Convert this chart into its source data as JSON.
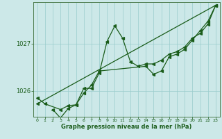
{
  "xlabel": "Graphe pression niveau de la mer (hPa)",
  "hours": [
    0,
    1,
    2,
    3,
    4,
    5,
    6,
    7,
    8,
    9,
    10,
    11,
    12,
    13,
    14,
    15,
    16,
    17,
    18,
    19,
    20,
    21,
    22,
    23
  ],
  "line1": [
    1025.85,
    1025.72,
    null,
    1025.6,
    1025.68,
    1025.7,
    1026.05,
    1026.05,
    1026.38,
    1027.05,
    1027.38,
    1027.12,
    1026.62,
    1026.52,
    1026.57,
    1026.57,
    1026.65,
    1026.78,
    1026.83,
    1026.93,
    1027.12,
    1027.22,
    1027.42,
    1027.82
  ],
  "line2": [
    null,
    null,
    1025.6,
    1025.42,
    1025.62,
    1025.7,
    1025.95,
    1026.12,
    1026.42,
    null,
    null,
    null,
    null,
    null,
    1026.52,
    1026.35,
    1026.42,
    1026.72,
    1026.78,
    1026.88,
    1027.08,
    1027.28,
    1027.48,
    1027.82
  ],
  "line3": [
    1025.72,
    null,
    null,
    null,
    null,
    null,
    null,
    null,
    null,
    null,
    null,
    null,
    null,
    null,
    null,
    null,
    null,
    null,
    null,
    null,
    null,
    null,
    null,
    1027.82
  ],
  "line_color": "#1a5c1a",
  "bg_color": "#cce8e8",
  "grid_color": "#99cccc",
  "ylim_lo": 1025.45,
  "ylim_hi": 1027.88,
  "yticks": [
    1026,
    1027
  ],
  "tick_label_color": "#1a5c1a",
  "xlabel_color": "#1a5c1a",
  "border_color": "#4a7a4a",
  "lw": 0.9,
  "ms": 2.8
}
